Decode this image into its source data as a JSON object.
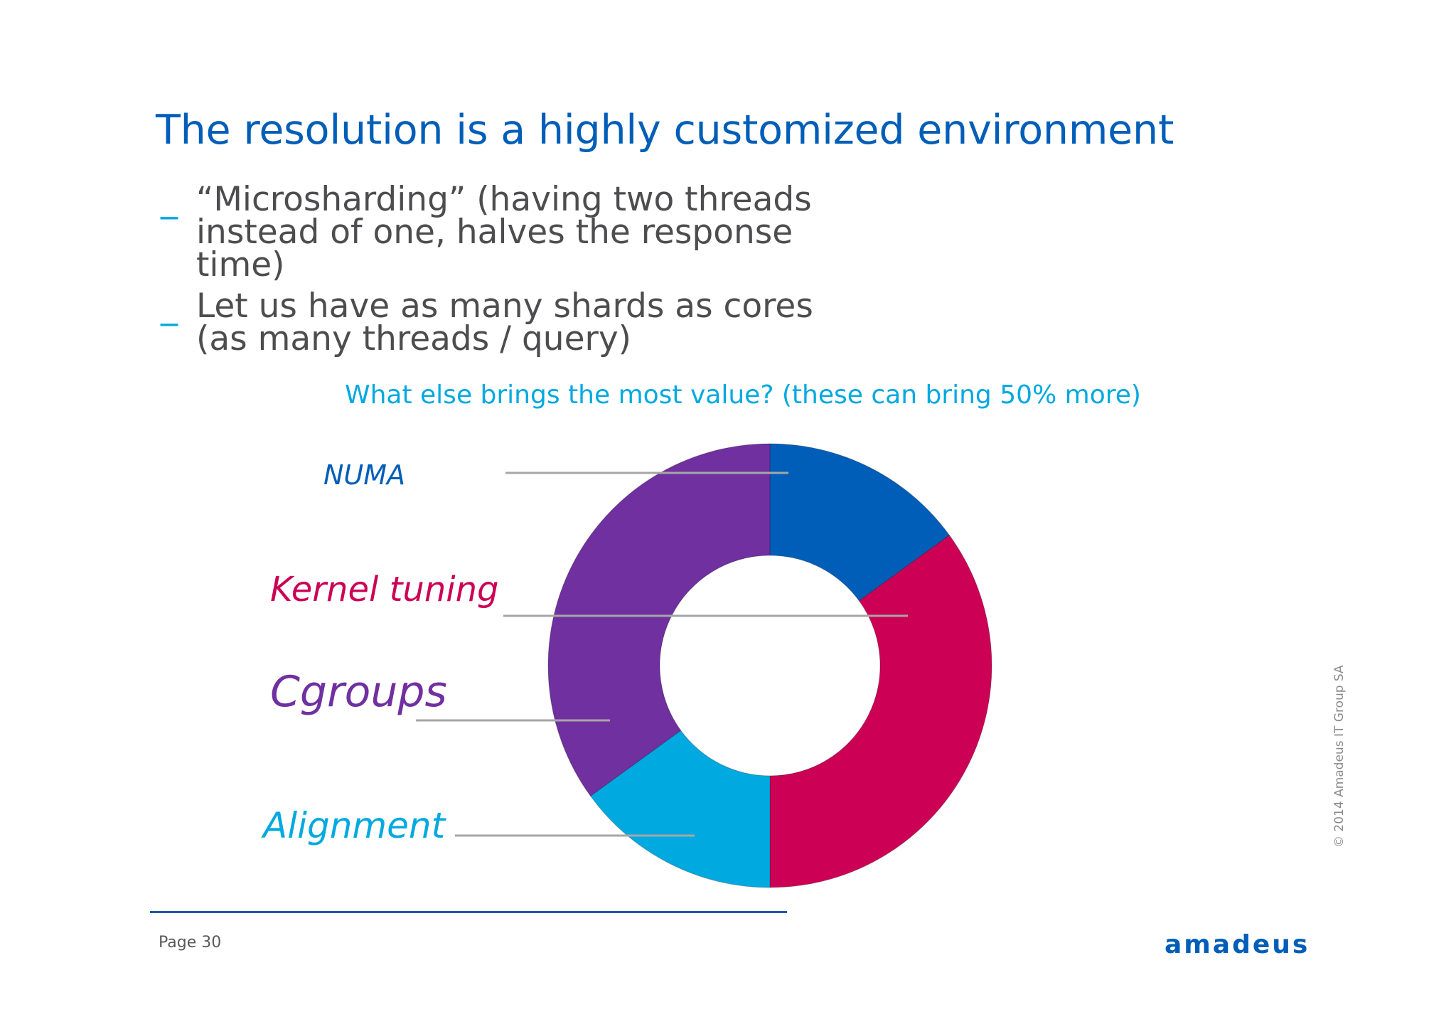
{
  "slide": {
    "title": "The resolution is a highly customized environment",
    "bullets": [
      {
        "mark": "_",
        "text": "“Microsharding” (having two threads instead of one, halves the response time)"
      },
      {
        "mark": "_",
        "text": "Let us have as many shards as cores (as many threads / query)"
      }
    ],
    "subtitle": "What else brings the most value? (these can bring 50% more)",
    "page_label": "Page  30",
    "logo_text": "amadeus",
    "copyright": "© 2014 Amadeus IT Group SA"
  },
  "colors": {
    "numa": "#005eb8",
    "kernel": "#cc0055",
    "cgroups": "#7030a0",
    "alignment": "#00a9e0",
    "leader": "#a6a6a6"
  },
  "chart_data": {
    "type": "pie",
    "subtype": "donut",
    "title": "What else brings the most value? (these can bring 50% more)",
    "categories": [
      "NUMA",
      "Kernel tuning",
      "Alignment",
      "Cgroups"
    ],
    "values": [
      15,
      35,
      15,
      35
    ],
    "legend": "labels-left"
  }
}
